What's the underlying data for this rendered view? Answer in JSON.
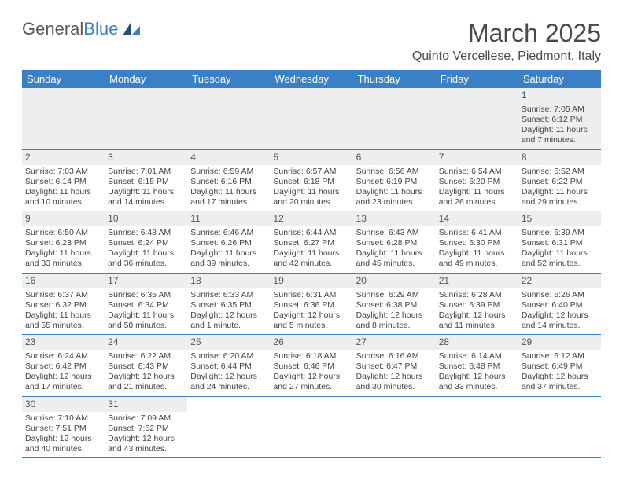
{
  "logo": {
    "text1": "General",
    "text2": "Blue"
  },
  "title": {
    "month": "March 2025",
    "location": "Quinto Vercellese, Piedmont, Italy"
  },
  "colors": {
    "header_bg": "#3b7fc4",
    "header_text": "#ffffff",
    "daynum_bg": "#eeeeee",
    "border": "#3b7fc4",
    "body_text": "#444444",
    "logo_gray": "#585858",
    "logo_blue": "#3b7fc4"
  },
  "weekdays": [
    "Sunday",
    "Monday",
    "Tuesday",
    "Wednesday",
    "Thursday",
    "Friday",
    "Saturday"
  ],
  "weeks": [
    [
      null,
      null,
      null,
      null,
      null,
      null,
      {
        "n": "1",
        "sr": "Sunrise: 7:05 AM",
        "ss": "Sunset: 6:12 PM",
        "dl1": "Daylight: 11 hours",
        "dl2": "and 7 minutes."
      }
    ],
    [
      {
        "n": "2",
        "sr": "Sunrise: 7:03 AM",
        "ss": "Sunset: 6:14 PM",
        "dl1": "Daylight: 11 hours",
        "dl2": "and 10 minutes."
      },
      {
        "n": "3",
        "sr": "Sunrise: 7:01 AM",
        "ss": "Sunset: 6:15 PM",
        "dl1": "Daylight: 11 hours",
        "dl2": "and 14 minutes."
      },
      {
        "n": "4",
        "sr": "Sunrise: 6:59 AM",
        "ss": "Sunset: 6:16 PM",
        "dl1": "Daylight: 11 hours",
        "dl2": "and 17 minutes."
      },
      {
        "n": "5",
        "sr": "Sunrise: 6:57 AM",
        "ss": "Sunset: 6:18 PM",
        "dl1": "Daylight: 11 hours",
        "dl2": "and 20 minutes."
      },
      {
        "n": "6",
        "sr": "Sunrise: 6:56 AM",
        "ss": "Sunset: 6:19 PM",
        "dl1": "Daylight: 11 hours",
        "dl2": "and 23 minutes."
      },
      {
        "n": "7",
        "sr": "Sunrise: 6:54 AM",
        "ss": "Sunset: 6:20 PM",
        "dl1": "Daylight: 11 hours",
        "dl2": "and 26 minutes."
      },
      {
        "n": "8",
        "sr": "Sunrise: 6:52 AM",
        "ss": "Sunset: 6:22 PM",
        "dl1": "Daylight: 11 hours",
        "dl2": "and 29 minutes."
      }
    ],
    [
      {
        "n": "9",
        "sr": "Sunrise: 6:50 AM",
        "ss": "Sunset: 6:23 PM",
        "dl1": "Daylight: 11 hours",
        "dl2": "and 33 minutes."
      },
      {
        "n": "10",
        "sr": "Sunrise: 6:48 AM",
        "ss": "Sunset: 6:24 PM",
        "dl1": "Daylight: 11 hours",
        "dl2": "and 36 minutes."
      },
      {
        "n": "11",
        "sr": "Sunrise: 6:46 AM",
        "ss": "Sunset: 6:26 PM",
        "dl1": "Daylight: 11 hours",
        "dl2": "and 39 minutes."
      },
      {
        "n": "12",
        "sr": "Sunrise: 6:44 AM",
        "ss": "Sunset: 6:27 PM",
        "dl1": "Daylight: 11 hours",
        "dl2": "and 42 minutes."
      },
      {
        "n": "13",
        "sr": "Sunrise: 6:43 AM",
        "ss": "Sunset: 6:28 PM",
        "dl1": "Daylight: 11 hours",
        "dl2": "and 45 minutes."
      },
      {
        "n": "14",
        "sr": "Sunrise: 6:41 AM",
        "ss": "Sunset: 6:30 PM",
        "dl1": "Daylight: 11 hours",
        "dl2": "and 49 minutes."
      },
      {
        "n": "15",
        "sr": "Sunrise: 6:39 AM",
        "ss": "Sunset: 6:31 PM",
        "dl1": "Daylight: 11 hours",
        "dl2": "and 52 minutes."
      }
    ],
    [
      {
        "n": "16",
        "sr": "Sunrise: 6:37 AM",
        "ss": "Sunset: 6:32 PM",
        "dl1": "Daylight: 11 hours",
        "dl2": "and 55 minutes."
      },
      {
        "n": "17",
        "sr": "Sunrise: 6:35 AM",
        "ss": "Sunset: 6:34 PM",
        "dl1": "Daylight: 11 hours",
        "dl2": "and 58 minutes."
      },
      {
        "n": "18",
        "sr": "Sunrise: 6:33 AM",
        "ss": "Sunset: 6:35 PM",
        "dl1": "Daylight: 12 hours",
        "dl2": "and 1 minute."
      },
      {
        "n": "19",
        "sr": "Sunrise: 6:31 AM",
        "ss": "Sunset: 6:36 PM",
        "dl1": "Daylight: 12 hours",
        "dl2": "and 5 minutes."
      },
      {
        "n": "20",
        "sr": "Sunrise: 6:29 AM",
        "ss": "Sunset: 6:38 PM",
        "dl1": "Daylight: 12 hours",
        "dl2": "and 8 minutes."
      },
      {
        "n": "21",
        "sr": "Sunrise: 6:28 AM",
        "ss": "Sunset: 6:39 PM",
        "dl1": "Daylight: 12 hours",
        "dl2": "and 11 minutes."
      },
      {
        "n": "22",
        "sr": "Sunrise: 6:26 AM",
        "ss": "Sunset: 6:40 PM",
        "dl1": "Daylight: 12 hours",
        "dl2": "and 14 minutes."
      }
    ],
    [
      {
        "n": "23",
        "sr": "Sunrise: 6:24 AM",
        "ss": "Sunset: 6:42 PM",
        "dl1": "Daylight: 12 hours",
        "dl2": "and 17 minutes."
      },
      {
        "n": "24",
        "sr": "Sunrise: 6:22 AM",
        "ss": "Sunset: 6:43 PM",
        "dl1": "Daylight: 12 hours",
        "dl2": "and 21 minutes."
      },
      {
        "n": "25",
        "sr": "Sunrise: 6:20 AM",
        "ss": "Sunset: 6:44 PM",
        "dl1": "Daylight: 12 hours",
        "dl2": "and 24 minutes."
      },
      {
        "n": "26",
        "sr": "Sunrise: 6:18 AM",
        "ss": "Sunset: 6:46 PM",
        "dl1": "Daylight: 12 hours",
        "dl2": "and 27 minutes."
      },
      {
        "n": "27",
        "sr": "Sunrise: 6:16 AM",
        "ss": "Sunset: 6:47 PM",
        "dl1": "Daylight: 12 hours",
        "dl2": "and 30 minutes."
      },
      {
        "n": "28",
        "sr": "Sunrise: 6:14 AM",
        "ss": "Sunset: 6:48 PM",
        "dl1": "Daylight: 12 hours",
        "dl2": "and 33 minutes."
      },
      {
        "n": "29",
        "sr": "Sunrise: 6:12 AM",
        "ss": "Sunset: 6:49 PM",
        "dl1": "Daylight: 12 hours",
        "dl2": "and 37 minutes."
      }
    ],
    [
      {
        "n": "30",
        "sr": "Sunrise: 7:10 AM",
        "ss": "Sunset: 7:51 PM",
        "dl1": "Daylight: 12 hours",
        "dl2": "and 40 minutes."
      },
      {
        "n": "31",
        "sr": "Sunrise: 7:09 AM",
        "ss": "Sunset: 7:52 PM",
        "dl1": "Daylight: 12 hours",
        "dl2": "and 43 minutes."
      },
      null,
      null,
      null,
      null,
      null
    ]
  ]
}
